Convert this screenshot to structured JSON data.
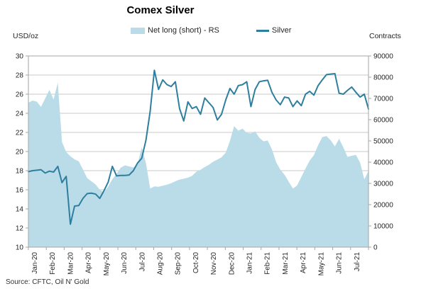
{
  "title": "Comex Silver",
  "source": "Source: CFTC, Oil N' Gold",
  "axes": {
    "left_unit": "USD/oz",
    "right_unit": "Contracts",
    "left_ticks": [
      10,
      12,
      14,
      16,
      18,
      20,
      22,
      24,
      26,
      28,
      30
    ],
    "right_ticks": [
      0,
      10000,
      20000,
      30000,
      40000,
      50000,
      60000,
      70000,
      80000,
      90000
    ]
  },
  "legend": [
    {
      "label": "Net long (short) - RS",
      "swatch": "area",
      "color": "#b9dce8"
    },
    {
      "label": "Silver",
      "swatch": "line",
      "color": "#2e7f9e"
    }
  ],
  "colors": {
    "area": "#b9dce8",
    "line": "#2e7f9e",
    "grid": "#c9c9c9",
    "axis": "#a6a6a6",
    "text": "#262626"
  },
  "chart_data": {
    "type": "combo",
    "title": "Comex Silver",
    "subtitle": "",
    "x_unit": "weekly",
    "x_labels": [
      "Jan-20",
      "Feb-20",
      "Mar-20",
      "Apr-20",
      "May-20",
      "Jun-20",
      "Jul-20",
      "Aug-20",
      "Sep-20",
      "Oct-20",
      "Nov-20",
      "Dec-20",
      "Jan-21",
      "Feb-21",
      "Mar-21",
      "Apr-21",
      "May-21",
      "Jun-21",
      "Jul-21"
    ],
    "grid": "horizontal",
    "legend_position": "top",
    "left_axis": {
      "label": "USD/oz",
      "range": [
        10,
        30
      ],
      "tick_step": 2
    },
    "right_axis": {
      "label": "Contracts",
      "range": [
        0,
        90000
      ],
      "tick_step": 10000
    },
    "series": [
      {
        "name": "Net long (short) - RS",
        "type": "area",
        "axis": "right",
        "color": "#b9dce8",
        "values": [
          68000,
          69000,
          68500,
          66000,
          70000,
          74000,
          69500,
          77400,
          49500,
          44800,
          42800,
          41300,
          40400,
          36500,
          32500,
          31000,
          29500,
          27000,
          25800,
          28500,
          32000,
          34500,
          37400,
          38500,
          38000,
          37500,
          39000,
          47000,
          39500,
          27600,
          28600,
          28400,
          28900,
          29400,
          30100,
          31000,
          31800,
          32200,
          32700,
          33600,
          35500,
          36400,
          37700,
          38800,
          40200,
          41200,
          42300,
          44500,
          50000,
          57000,
          54800,
          55800,
          53800,
          53500,
          54500,
          51500,
          49800,
          50200,
          46000,
          40000,
          36500,
          34100,
          30800,
          27600,
          29000,
          33000,
          37000,
          40800,
          43300,
          48000,
          51800,
          52300,
          50300,
          47400,
          51000,
          47000,
          42500,
          43000,
          43400,
          39800,
          31900,
          35800
        ]
      },
      {
        "name": "Silver",
        "type": "line",
        "axis": "left",
        "color": "#2e7f9e",
        "values": [
          17.9,
          18.0,
          18.05,
          18.1,
          17.75,
          17.95,
          17.85,
          18.45,
          16.75,
          17.4,
          12.4,
          14.3,
          14.35,
          15.1,
          15.6,
          15.65,
          15.55,
          15.1,
          15.9,
          16.8,
          18.45,
          17.45,
          17.5,
          17.5,
          17.55,
          18.0,
          18.8,
          19.3,
          21.2,
          24.2,
          28.5,
          26.5,
          27.5,
          27.0,
          26.8,
          27.3,
          24.5,
          23.2,
          25.2,
          24.5,
          24.7,
          23.9,
          25.6,
          25.1,
          24.6,
          23.3,
          23.9,
          25.4,
          26.6,
          26.0,
          26.9,
          27.0,
          27.3,
          24.7,
          26.5,
          27.3,
          27.4,
          27.45,
          26.2,
          25.4,
          24.9,
          25.7,
          25.6,
          24.7,
          25.3,
          24.8,
          26.0,
          26.3,
          25.9,
          26.9,
          27.5,
          28.05,
          28.1,
          28.15,
          26.1,
          26.0,
          26.4,
          26.75,
          26.2,
          25.7,
          26.0,
          24.45
        ]
      }
    ]
  }
}
